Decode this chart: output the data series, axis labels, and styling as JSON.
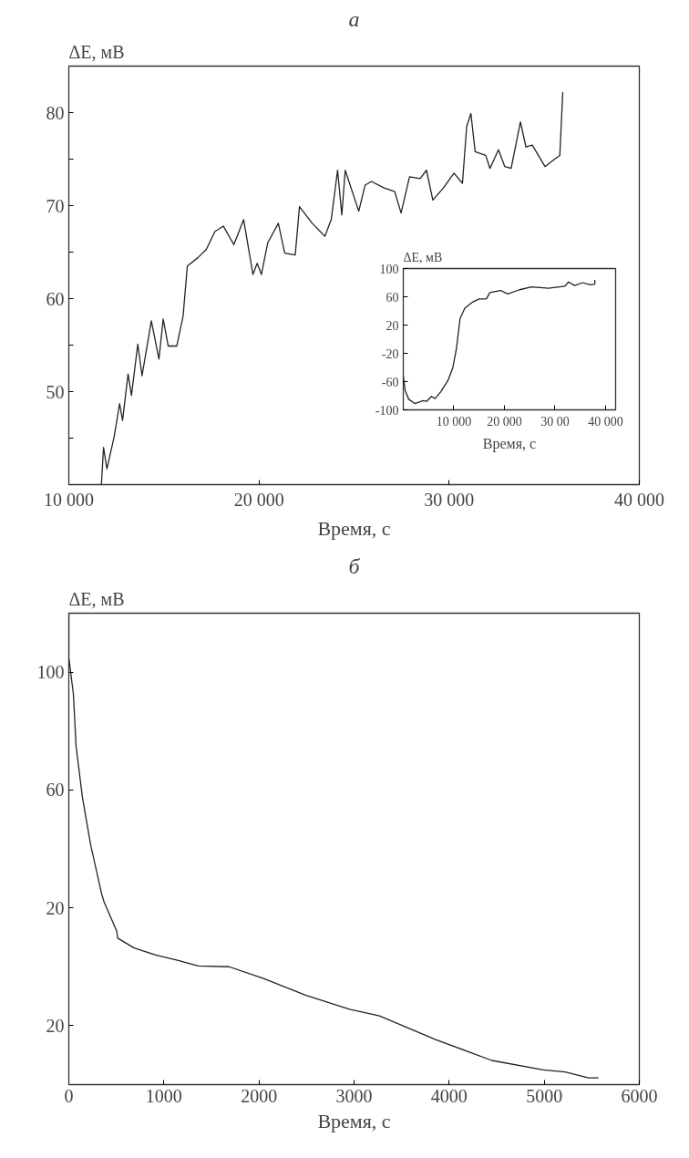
{
  "chart_data": [
    {
      "type": "line",
      "title": "а",
      "xlabel": "Время, с",
      "ylabel": "ΔE, мВ",
      "xlim": [
        10000,
        40000
      ],
      "ylim": [
        40,
        85
      ],
      "xticks": [
        {
          "value": 10000,
          "label": "10 000"
        },
        {
          "value": 20000,
          "label": "20 000"
        },
        {
          "value": 30000,
          "label": "30 000"
        },
        {
          "value": 40000,
          "label": "40 000"
        }
      ],
      "yticks": [
        {
          "value": 45,
          "label": null
        },
        50,
        {
          "value": 55,
          "label": null
        },
        60,
        {
          "value": 65,
          "label": null
        },
        70,
        {
          "value": 75,
          "label": null
        },
        80
      ],
      "series": [
        {
          "color": "#222222",
          "x": [
            11714,
            11825,
            12003,
            12381,
            12671,
            12827,
            13116,
            13294,
            13628,
            13850,
            14340,
            14741,
            14963,
            15230,
            15675,
            16009,
            16232,
            16788,
            17233,
            17679,
            18124,
            18681,
            19192,
            19682,
            19905,
            20128,
            20461,
            21018,
            21352,
            21907,
            22130,
            22799,
            23465,
            23799,
            24133,
            24356,
            24534,
            25246,
            25580,
            25914,
            26582,
            27138,
            27472,
            27917,
            28474,
            28807,
            29141,
            29698,
            30254,
            30699,
            30922,
            31144,
            31367,
            31923,
            32146,
            32592,
            32926,
            33259,
            33749,
            34038,
            34372,
            35040,
            35485,
            35819,
            35975
          ],
          "values": [
            40,
            44.0,
            41.7,
            45.1,
            48.7,
            46.9,
            51.9,
            49.6,
            55.1,
            51.7,
            57.6,
            53.5,
            57.8,
            54.9,
            54.9,
            58.1,
            63.5,
            64.4,
            65.3,
            67.2,
            67.8,
            65.8,
            68.5,
            62.6,
            63.8,
            62.6,
            66.0,
            68.1,
            64.9,
            64.7,
            69.9,
            68.1,
            66.7,
            68.5,
            73.8,
            69.0,
            73.8,
            69.4,
            72.2,
            72.6,
            71.9,
            71.5,
            69.2,
            73.1,
            72.9,
            73.8,
            70.6,
            71.9,
            73.5,
            72.4,
            78.5,
            79.9,
            75.8,
            75.4,
            74.0,
            76.0,
            74.2,
            74.0,
            79.0,
            76.3,
            76.5,
            74.2,
            74.9,
            75.4,
            82.2
          ]
        }
      ]
    },
    {
      "type": "line",
      "xlabel": "Время, с",
      "ylabel": "ΔE, мВ",
      "xlim": [
        0,
        42000
      ],
      "ylim": [
        -100,
        100
      ],
      "xticks": [
        {
          "value": 10000,
          "label": "10 000"
        },
        {
          "value": 20000,
          "label": "20 000"
        },
        {
          "value": 30000,
          "label": "30 00"
        },
        {
          "value": 40000,
          "label": "40 000"
        }
      ],
      "yticks": [
        -100,
        -60,
        -20,
        20,
        60,
        100
      ],
      "series": [
        {
          "color": "#222222",
          "x": [
            0,
            377,
            1085,
            2264,
            3208,
            3915,
            4623,
            5566,
            6274,
            7453,
            8868,
            9811,
            10519,
            11226,
            12170,
            13585,
            15000,
            16415,
            17123,
            19245,
            20660,
            23019,
            25377,
            28679,
            31981,
            32689,
            33868,
            35519,
            36934,
            37877,
            37877
          ],
          "values": [
            -52,
            -73,
            -85,
            -91,
            -89,
            -87,
            -88,
            -81,
            -84,
            -74,
            -58,
            -40,
            -13,
            29,
            44,
            52,
            57,
            57,
            66,
            69,
            64,
            70,
            74,
            72,
            75,
            81,
            76,
            80,
            77,
            78,
            84
          ]
        }
      ]
    },
    {
      "type": "line",
      "title": "б",
      "xlabel": "Время, с",
      "ylabel": "ΔE, мВ",
      "xlim": [
        0,
        6000
      ],
      "ylim": [
        -40,
        120
      ],
      "xticks": [
        0,
        1000,
        2000,
        3000,
        4000,
        5000,
        6000
      ],
      "yticks": [
        {
          "value": -20,
          "label": "20"
        },
        20,
        60,
        100
      ],
      "series": [
        {
          "color": "#222222",
          "x": [
            0,
            0,
            48,
            76,
            143,
            229,
            343,
            371,
            505,
            514,
            686,
            914,
            1133,
            1362,
            1686,
            2048,
            2495,
            2952,
            3267,
            3857,
            4448,
            4990,
            5219,
            5467,
            5571
          ],
          "values": [
            120,
            105,
            92.6,
            75,
            57.5,
            41.5,
            25,
            22,
            12,
            9.7,
            6.4,
            4,
            2.3,
            0.3,
            0,
            -4,
            -9.7,
            -14.4,
            -16.7,
            -24.7,
            -31.8,
            -35,
            -35.7,
            -37.7,
            -37.7
          ]
        }
      ]
    }
  ]
}
